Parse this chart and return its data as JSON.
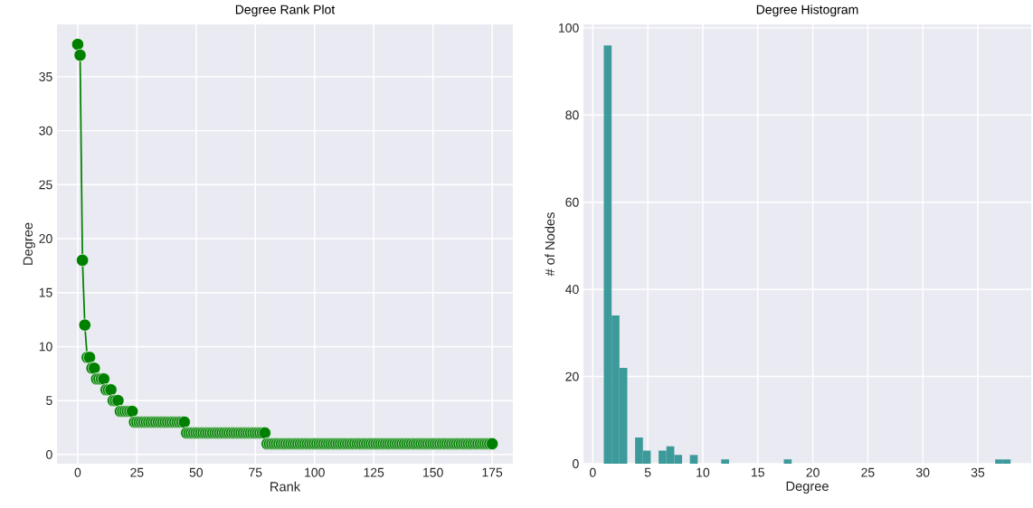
{
  "chart_data": [
    {
      "type": "line",
      "title": "Degree Rank Plot",
      "xlabel": "Rank",
      "ylabel": "Degree",
      "color": "#008000",
      "marker": "circle",
      "line_style": "solid",
      "grid": true,
      "xlim": [
        -8.75,
        183.75
      ],
      "ylim": [
        -0.85,
        39.85
      ],
      "xticks": [
        0,
        25,
        50,
        75,
        100,
        125,
        150,
        175
      ],
      "yticks": [
        0,
        5,
        10,
        15,
        20,
        25,
        30,
        35
      ],
      "x": [
        0,
        1,
        2,
        3,
        4,
        5,
        6,
        7,
        8,
        9,
        10,
        11,
        12,
        13,
        14,
        15,
        16,
        17,
        18,
        19,
        20,
        21,
        22,
        23,
        24,
        25,
        26,
        27,
        28,
        29,
        30,
        31,
        32,
        33,
        34,
        35,
        36,
        37,
        38,
        39,
        40,
        41,
        42,
        43,
        44,
        45,
        46,
        47,
        48,
        49,
        50,
        51,
        52,
        53,
        54,
        55,
        56,
        57,
        58,
        59,
        60,
        61,
        62,
        63,
        64,
        65,
        66,
        67,
        68,
        69,
        70,
        71,
        72,
        73,
        74,
        75,
        76,
        77,
        78,
        79,
        80,
        81,
        82,
        83,
        84,
        85,
        86,
        87,
        88,
        89,
        90,
        91,
        92,
        93,
        94,
        95,
        96,
        97,
        98,
        99,
        100,
        101,
        102,
        103,
        104,
        105,
        106,
        107,
        108,
        109,
        110,
        111,
        112,
        113,
        114,
        115,
        116,
        117,
        118,
        119,
        120,
        121,
        122,
        123,
        124,
        125,
        126,
        127,
        128,
        129,
        130,
        131,
        132,
        133,
        134,
        135,
        136,
        137,
        138,
        139,
        140,
        141,
        142,
        143,
        144,
        145,
        146,
        147,
        148,
        149,
        150,
        151,
        152,
        153,
        154,
        155,
        156,
        157,
        158,
        159,
        160,
        161,
        162,
        163,
        164,
        165,
        166,
        167,
        168,
        169,
        170,
        171,
        172,
        173,
        174,
        175
      ],
      "values": [
        38,
        37,
        18,
        12,
        9,
        9,
        8,
        8,
        7,
        7,
        7,
        7,
        6,
        6,
        6,
        5,
        5,
        5,
        4,
        4,
        4,
        4,
        4,
        4,
        3,
        3,
        3,
        3,
        3,
        3,
        3,
        3,
        3,
        3,
        3,
        3,
        3,
        3,
        3,
        3,
        3,
        3,
        3,
        3,
        3,
        3,
        2,
        2,
        2,
        2,
        2,
        2,
        2,
        2,
        2,
        2,
        2,
        2,
        2,
        2,
        2,
        2,
        2,
        2,
        2,
        2,
        2,
        2,
        2,
        2,
        2,
        2,
        2,
        2,
        2,
        2,
        2,
        2,
        2,
        2,
        1,
        1,
        1,
        1,
        1,
        1,
        1,
        1,
        1,
        1,
        1,
        1,
        1,
        1,
        1,
        1,
        1,
        1,
        1,
        1,
        1,
        1,
        1,
        1,
        1,
        1,
        1,
        1,
        1,
        1,
        1,
        1,
        1,
        1,
        1,
        1,
        1,
        1,
        1,
        1,
        1,
        1,
        1,
        1,
        1,
        1,
        1,
        1,
        1,
        1,
        1,
        1,
        1,
        1,
        1,
        1,
        1,
        1,
        1,
        1,
        1,
        1,
        1,
        1,
        1,
        1,
        1,
        1,
        1,
        1,
        1,
        1,
        1,
        1,
        1,
        1,
        1,
        1,
        1,
        1,
        1,
        1,
        1,
        1,
        1,
        1,
        1,
        1,
        1,
        1,
        1,
        1,
        1,
        1,
        1,
        1
      ]
    },
    {
      "type": "histogram",
      "title": "Degree Histogram",
      "xlabel": "Degree",
      "ylabel": "# of Nodes",
      "color": "#3c9a9a",
      "grid": true,
      "xlim": [
        -0.85,
        39.85
      ],
      "ylim": [
        0,
        100.8
      ],
      "xticks": [
        0,
        5,
        10,
        15,
        20,
        25,
        30,
        35
      ],
      "yticks": [
        0,
        20,
        40,
        60,
        80,
        100
      ],
      "bins": [
        1,
        1.712,
        2.423,
        3.135,
        3.846,
        4.558,
        5.269,
        5.981,
        6.692,
        7.404,
        8.115,
        8.827,
        9.538,
        10.25,
        10.962,
        11.673,
        12.385,
        13.096,
        13.808,
        14.519,
        15.231,
        15.942,
        16.654,
        17.365,
        18.077,
        18.788,
        19.5,
        20.212,
        20.923,
        21.635,
        22.346,
        23.058,
        23.769,
        24.481,
        25.192,
        25.904,
        26.615,
        27.327,
        28.038,
        28.75,
        29.462,
        30.173,
        30.885,
        31.596,
        32.308,
        33.019,
        33.731,
        34.442,
        35.154,
        35.865,
        36.577,
        37.288,
        38
      ],
      "values": [
        96,
        34,
        22,
        0,
        6,
        3,
        0,
        3,
        4,
        2,
        0,
        2,
        0,
        0,
        0,
        1,
        0,
        0,
        0,
        0,
        0,
        0,
        0,
        1,
        0,
        0,
        0,
        0,
        0,
        0,
        0,
        0,
        0,
        0,
        0,
        0,
        0,
        0,
        0,
        0,
        0,
        0,
        0,
        0,
        0,
        0,
        0,
        0,
        0,
        0,
        1,
        1
      ]
    }
  ]
}
